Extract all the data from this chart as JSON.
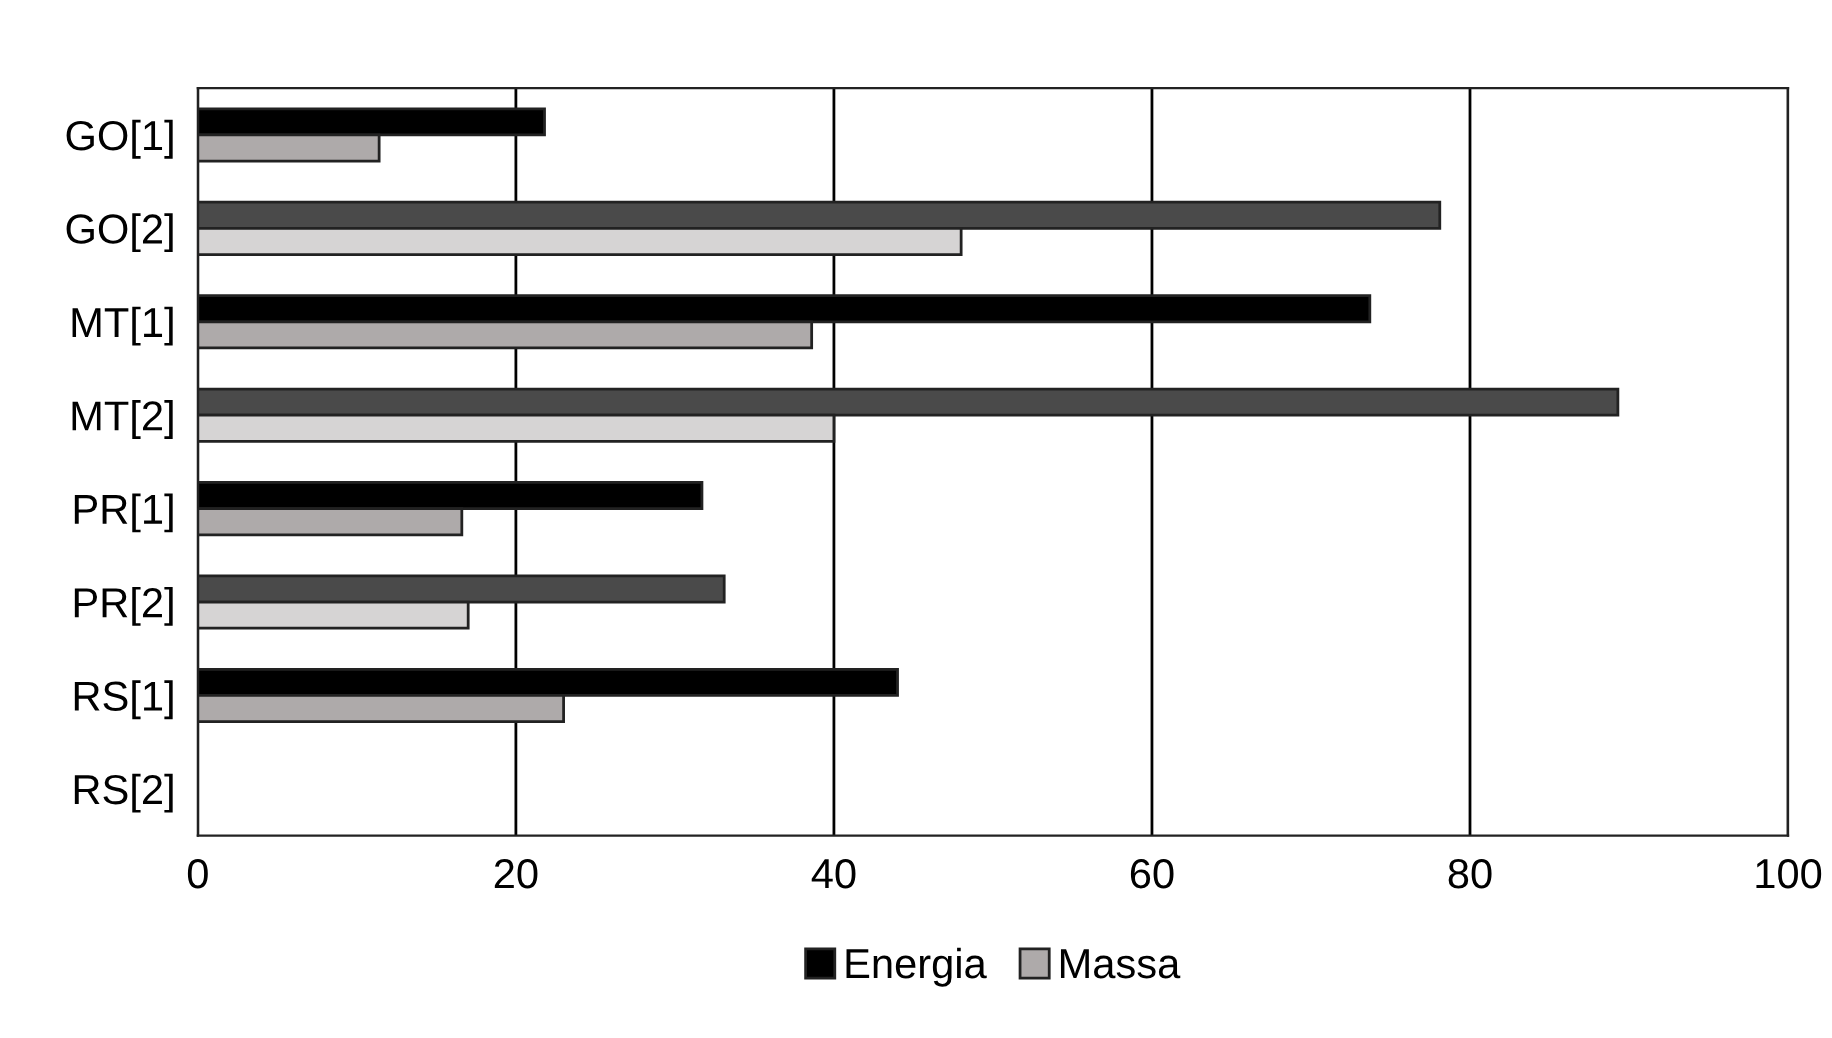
{
  "chart_data": {
    "type": "bar",
    "orientation": "horizontal",
    "categories": [
      "GO[1]",
      "GO[2]",
      "MT[1]",
      "MT[2]",
      "PR[1]",
      "PR[2]",
      "RS[1]",
      "RS[2]"
    ],
    "series": [
      {
        "name": "Energia",
        "color": "#000000",
        "colors": [
          "#000000",
          "#4a4a4a",
          "#000000",
          "#4a4a4a",
          "#000000",
          "#4a4a4a",
          "#000000",
          "#4a4a4a"
        ],
        "values": [
          21.8,
          78.1,
          73.7,
          89.3,
          31.7,
          33.1,
          44.0,
          null
        ]
      },
      {
        "name": "Massa",
        "color": "#aeaaaa",
        "colors": [
          "#aeaaaa",
          "#d6d4d4",
          "#aeaaaa",
          "#d6d4d4",
          "#aeaaaa",
          "#d6d4d4",
          "#aeaaaa",
          "#d6d4d4"
        ],
        "values": [
          11.4,
          48.0,
          38.6,
          40.0,
          16.6,
          17.0,
          23.0,
          null
        ]
      }
    ],
    "xlim": [
      0,
      100
    ],
    "xticks": [
      0,
      20,
      40,
      60,
      80,
      100
    ],
    "grid": "x",
    "legend": "bottom"
  }
}
